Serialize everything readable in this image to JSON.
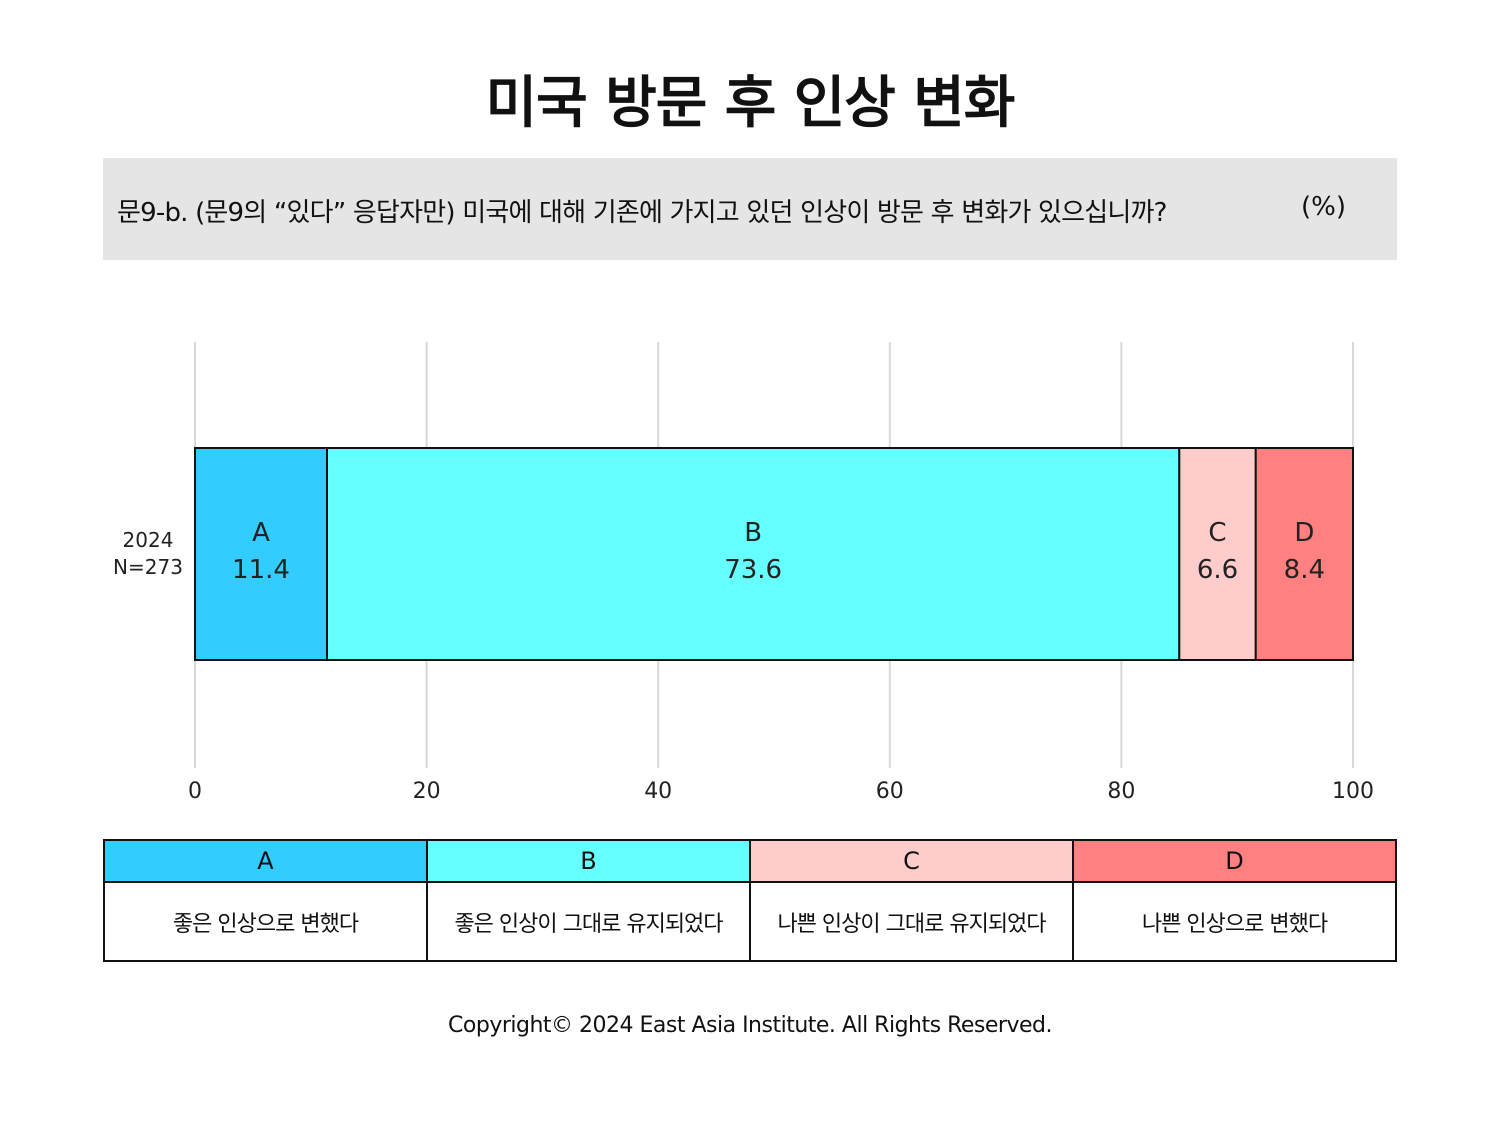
{
  "title": "미국 방문 후 인상 변화",
  "question": {
    "text": "문9-b. (문9의 “있다” 응답자만) 미국에 대해 기존에 가지고 있던 인상이 방문 후 변화가 있으십니까?",
    "unit": "(%)"
  },
  "chart_data": {
    "type": "bar",
    "orientation": "horizontal",
    "stacked": true,
    "categories": [
      "2024\nN=273"
    ],
    "category_label": {
      "year": "2024",
      "n": "N=273"
    },
    "series": [
      {
        "name": "A",
        "values": [
          11.4
        ],
        "color": "#33ccff"
      },
      {
        "name": "B",
        "values": [
          73.6
        ],
        "color": "#66ffff"
      },
      {
        "name": "C",
        "values": [
          6.6
        ],
        "color": "#ffcccc"
      },
      {
        "name": "D",
        "values": [
          8.4
        ],
        "color": "#ff8080"
      }
    ],
    "xlim": [
      0,
      100
    ],
    "xticks": [
      0,
      20,
      40,
      60,
      80,
      100
    ],
    "grid": true
  },
  "legend": [
    {
      "key": "A",
      "label": "좋은 인상으로 변했다",
      "color": "#33ccff"
    },
    {
      "key": "B",
      "label": "좋은 인상이 그대로 유지되었다",
      "color": "#66ffff"
    },
    {
      "key": "C",
      "label": "나쁜 인상이 그대로 유지되었다",
      "color": "#ffcccc"
    },
    {
      "key": "D",
      "label": "나쁜 인상으로 변했다",
      "color": "#ff8080"
    }
  ],
  "copyright": "Copyright© 2024 East Asia Institute. All Rights Reserved."
}
